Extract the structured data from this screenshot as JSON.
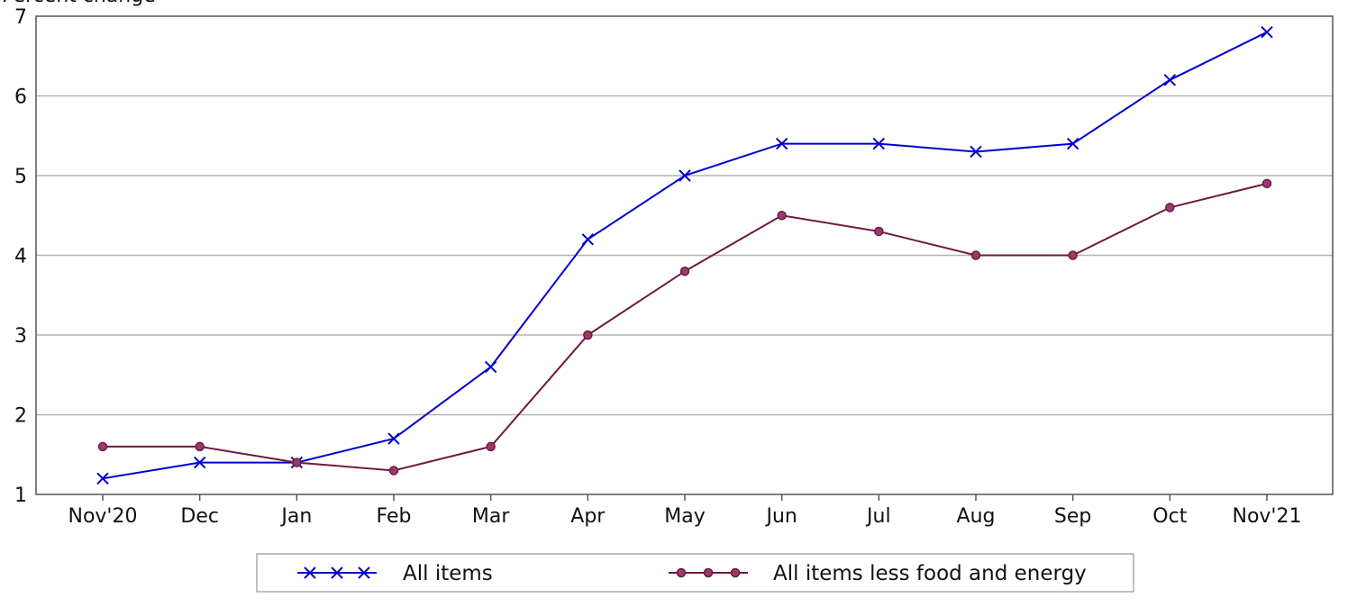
{
  "chart_data": {
    "type": "line",
    "ylabel": "Percent change",
    "categories": [
      "Nov'20",
      "Dec",
      "Jan",
      "Feb",
      "Mar",
      "Apr",
      "May",
      "Jun",
      "Jul",
      "Aug",
      "Sep",
      "Oct",
      "Nov'21"
    ],
    "yticks": [
      "1",
      "2",
      "3",
      "4",
      "5",
      "6",
      "7"
    ],
    "ylim": [
      1,
      7
    ],
    "grid": "horizontal",
    "legend_position": "bottom",
    "series": [
      {
        "name": "All items",
        "values": [
          1.2,
          1.4,
          1.4,
          1.7,
          2.6,
          4.2,
          5.0,
          5.4,
          5.4,
          5.3,
          5.4,
          6.2,
          6.8
        ],
        "color": "#0000cc",
        "marker": "x"
      },
      {
        "name": "All items less food and energy",
        "values": [
          1.6,
          1.6,
          1.4,
          1.3,
          1.6,
          3.0,
          3.8,
          4.5,
          4.3,
          4.0,
          4.0,
          4.6,
          4.9
        ],
        "color": "#6e1a3f",
        "marker": "circle"
      }
    ]
  }
}
